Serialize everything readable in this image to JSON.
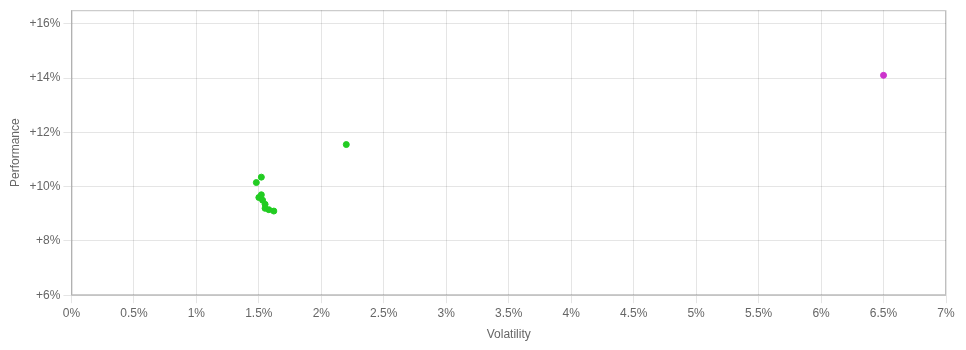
{
  "chart_data": {
    "type": "scatter",
    "xlabel": "Volatility",
    "ylabel": "Performance",
    "xlim": [
      0.0,
      0.07
    ],
    "ylim": [
      0.06,
      0.165
    ],
    "xticks": [
      {
        "value": 0.0,
        "label": "0%"
      },
      {
        "value": 0.005,
        "label": "0.5%"
      },
      {
        "value": 0.01,
        "label": "1%"
      },
      {
        "value": 0.015,
        "label": "1.5%"
      },
      {
        "value": 0.02,
        "label": "2%"
      },
      {
        "value": 0.025,
        "label": "2.5%"
      },
      {
        "value": 0.03,
        "label": "3%"
      },
      {
        "value": 0.035,
        "label": "3.5%"
      },
      {
        "value": 0.04,
        "label": "4%"
      },
      {
        "value": 0.045,
        "label": "4.5%"
      },
      {
        "value": 0.05,
        "label": "5%"
      },
      {
        "value": 0.055,
        "label": "5.5%"
      },
      {
        "value": 0.06,
        "label": "6%"
      },
      {
        "value": 0.065,
        "label": "6.5%"
      },
      {
        "value": 0.07,
        "label": "7%"
      }
    ],
    "yticks": [
      {
        "value": 0.06,
        "label": "+6%"
      },
      {
        "value": 0.08,
        "label": "+8%"
      },
      {
        "value": 0.1,
        "label": "+10%"
      },
      {
        "value": 0.12,
        "label": "+12%"
      },
      {
        "value": 0.14,
        "label": "+14%"
      },
      {
        "value": 0.16,
        "label": "+16%"
      }
    ],
    "grid": true,
    "series": [
      {
        "color": "#22cc22",
        "x": [
          0.0148,
          0.0152,
          0.015,
          0.0152,
          0.0153,
          0.0155,
          0.0155,
          0.0158,
          0.0162,
          0.022
        ],
        "values": [
          0.1015,
          0.1035,
          0.096,
          0.097,
          0.095,
          0.0935,
          0.092,
          0.0915,
          0.091,
          0.1155
        ]
      },
      {
        "color": "#cc33cc",
        "x": [
          0.065
        ],
        "values": [
          0.141
        ]
      }
    ]
  }
}
